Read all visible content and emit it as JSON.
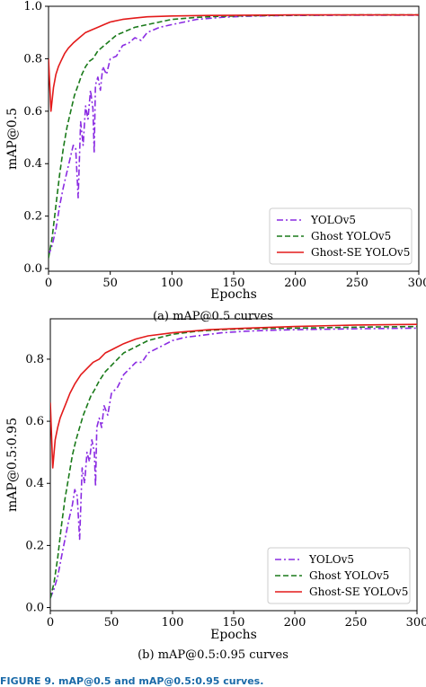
{
  "figure_caption": "FIGURE 9. mAP@0.5 and mAP@0.5:0.95 curves.",
  "chart_data": [
    {
      "type": "line",
      "caption": "(a) mAP@0.5 curves",
      "xlabel": "Epochs",
      "ylabel": "mAP@0.5",
      "xlim": [
        0,
        300
      ],
      "ylim": [
        -0.01,
        1.0
      ],
      "xticks": [
        0,
        50,
        100,
        150,
        200,
        250,
        300
      ],
      "yticks": [
        0.0,
        0.2,
        0.4,
        0.6,
        0.8,
        1.0
      ],
      "ytick_labels": [
        "0.0",
        "0.2",
        "0.4",
        "0.6",
        "0.8",
        "1.0"
      ],
      "legend_position": "bottom-right",
      "series": [
        {
          "name": "YOLOv5",
          "color": "#8a2be2",
          "style": "dashdot",
          "points": [
            [
              0,
              0.05
            ],
            [
              3,
              0.09
            ],
            [
              6,
              0.15
            ],
            [
              9,
              0.24
            ],
            [
              12,
              0.31
            ],
            [
              15,
              0.37
            ],
            [
              18,
              0.43
            ],
            [
              20,
              0.47
            ],
            [
              22,
              0.46
            ],
            [
              24,
              0.27
            ],
            [
              26,
              0.56
            ],
            [
              28,
              0.47
            ],
            [
              30,
              0.62
            ],
            [
              32,
              0.57
            ],
            [
              34,
              0.68
            ],
            [
              36,
              0.61
            ],
            [
              37,
              0.44
            ],
            [
              38,
              0.7
            ],
            [
              40,
              0.73
            ],
            [
              42,
              0.68
            ],
            [
              44,
              0.77
            ],
            [
              47,
              0.74
            ],
            [
              50,
              0.8
            ],
            [
              55,
              0.81
            ],
            [
              60,
              0.85
            ],
            [
              65,
              0.86
            ],
            [
              70,
              0.88
            ],
            [
              75,
              0.87
            ],
            [
              80,
              0.9
            ],
            [
              90,
              0.92
            ],
            [
              100,
              0.93
            ],
            [
              110,
              0.94
            ],
            [
              120,
              0.95
            ],
            [
              140,
              0.958
            ],
            [
              160,
              0.962
            ],
            [
              180,
              0.964
            ],
            [
              200,
              0.965
            ],
            [
              250,
              0.966
            ],
            [
              300,
              0.966
            ]
          ]
        },
        {
          "name": "Ghost YOLOv5",
          "color": "#1a7a1a",
          "style": "dashed",
          "points": [
            [
              0,
              0.04
            ],
            [
              3,
              0.12
            ],
            [
              6,
              0.24
            ],
            [
              9,
              0.36
            ],
            [
              12,
              0.46
            ],
            [
              15,
              0.54
            ],
            [
              18,
              0.6
            ],
            [
              21,
              0.66
            ],
            [
              24,
              0.7
            ],
            [
              27,
              0.74
            ],
            [
              30,
              0.77
            ],
            [
              33,
              0.79
            ],
            [
              36,
              0.8
            ],
            [
              40,
              0.83
            ],
            [
              45,
              0.85
            ],
            [
              50,
              0.87
            ],
            [
              55,
              0.89
            ],
            [
              60,
              0.9
            ],
            [
              70,
              0.92
            ],
            [
              80,
              0.93
            ],
            [
              90,
              0.94
            ],
            [
              100,
              0.95
            ],
            [
              120,
              0.958
            ],
            [
              140,
              0.962
            ],
            [
              160,
              0.964
            ],
            [
              200,
              0.966
            ],
            [
              250,
              0.967
            ],
            [
              300,
              0.967
            ]
          ]
        },
        {
          "name": "Ghost-SE YOLOv5",
          "color": "#e31a1a",
          "style": "solid",
          "points": [
            [
              0,
              0.8
            ],
            [
              2,
              0.6
            ],
            [
              4,
              0.69
            ],
            [
              6,
              0.74
            ],
            [
              8,
              0.77
            ],
            [
              10,
              0.79
            ],
            [
              13,
              0.82
            ],
            [
              16,
              0.84
            ],
            [
              20,
              0.86
            ],
            [
              25,
              0.88
            ],
            [
              30,
              0.9
            ],
            [
              35,
              0.91
            ],
            [
              40,
              0.92
            ],
            [
              45,
              0.93
            ],
            [
              50,
              0.94
            ],
            [
              60,
              0.95
            ],
            [
              70,
              0.955
            ],
            [
              80,
              0.96
            ],
            [
              100,
              0.963
            ],
            [
              130,
              0.965
            ],
            [
              160,
              0.966
            ],
            [
              200,
              0.967
            ],
            [
              250,
              0.967
            ],
            [
              300,
              0.967
            ]
          ]
        }
      ]
    },
    {
      "type": "line",
      "caption": "(b) mAP@0.5:0.95 curves",
      "xlabel": "Epochs",
      "ylabel": "mAP@0.5:0.95",
      "xlim": [
        0,
        300
      ],
      "ylim": [
        -0.01,
        0.93
      ],
      "xticks": [
        0,
        50,
        100,
        150,
        200,
        250,
        300
      ],
      "yticks": [
        0.0,
        0.2,
        0.4,
        0.6,
        0.8
      ],
      "ytick_labels": [
        "0.0",
        "0.2",
        "0.4",
        "0.6",
        "0.8"
      ],
      "legend_position": "bottom-right",
      "series": [
        {
          "name": "YOLOv5",
          "color": "#8a2be2",
          "style": "dashdot",
          "points": [
            [
              0,
              0.03
            ],
            [
              3,
              0.06
            ],
            [
              6,
              0.1
            ],
            [
              9,
              0.16
            ],
            [
              12,
              0.22
            ],
            [
              15,
              0.28
            ],
            [
              18,
              0.33
            ],
            [
              20,
              0.38
            ],
            [
              22,
              0.36
            ],
            [
              24,
              0.22
            ],
            [
              26,
              0.45
            ],
            [
              28,
              0.4
            ],
            [
              30,
              0.5
            ],
            [
              32,
              0.47
            ],
            [
              34,
              0.54
            ],
            [
              36,
              0.5
            ],
            [
              37,
              0.39
            ],
            [
              38,
              0.58
            ],
            [
              40,
              0.61
            ],
            [
              42,
              0.58
            ],
            [
              44,
              0.65
            ],
            [
              47,
              0.62
            ],
            [
              50,
              0.69
            ],
            [
              55,
              0.71
            ],
            [
              60,
              0.75
            ],
            [
              65,
              0.77
            ],
            [
              70,
              0.79
            ],
            [
              75,
              0.79
            ],
            [
              80,
              0.82
            ],
            [
              90,
              0.84
            ],
            [
              100,
              0.86
            ],
            [
              110,
              0.87
            ],
            [
              120,
              0.875
            ],
            [
              140,
              0.885
            ],
            [
              160,
              0.89
            ],
            [
              180,
              0.893
            ],
            [
              200,
              0.895
            ],
            [
              250,
              0.898
            ],
            [
              300,
              0.9
            ]
          ]
        },
        {
          "name": "Ghost YOLOv5",
          "color": "#1a7a1a",
          "style": "dashed",
          "points": [
            [
              0,
              0.03
            ],
            [
              3,
              0.08
            ],
            [
              6,
              0.16
            ],
            [
              9,
              0.26
            ],
            [
              12,
              0.35
            ],
            [
              15,
              0.42
            ],
            [
              18,
              0.49
            ],
            [
              21,
              0.54
            ],
            [
              24,
              0.58
            ],
            [
              27,
              0.62
            ],
            [
              30,
              0.65
            ],
            [
              33,
              0.68
            ],
            [
              36,
              0.7
            ],
            [
              40,
              0.73
            ],
            [
              45,
              0.76
            ],
            [
              50,
              0.78
            ],
            [
              55,
              0.8
            ],
            [
              60,
              0.82
            ],
            [
              70,
              0.84
            ],
            [
              80,
              0.86
            ],
            [
              90,
              0.87
            ],
            [
              100,
              0.88
            ],
            [
              120,
              0.89
            ],
            [
              140,
              0.895
            ],
            [
              160,
              0.898
            ],
            [
              200,
              0.9
            ],
            [
              250,
              0.903
            ],
            [
              300,
              0.905
            ]
          ]
        },
        {
          "name": "Ghost-SE YOLOv5",
          "color": "#e31a1a",
          "style": "solid",
          "points": [
            [
              0,
              0.66
            ],
            [
              2,
              0.45
            ],
            [
              4,
              0.54
            ],
            [
              6,
              0.58
            ],
            [
              8,
              0.61
            ],
            [
              10,
              0.63
            ],
            [
              13,
              0.66
            ],
            [
              16,
              0.69
            ],
            [
              20,
              0.72
            ],
            [
              25,
              0.75
            ],
            [
              30,
              0.77
            ],
            [
              35,
              0.79
            ],
            [
              40,
              0.8
            ],
            [
              45,
              0.82
            ],
            [
              50,
              0.83
            ],
            [
              60,
              0.85
            ],
            [
              70,
              0.865
            ],
            [
              80,
              0.875
            ],
            [
              100,
              0.885
            ],
            [
              130,
              0.895
            ],
            [
              160,
              0.9
            ],
            [
              200,
              0.905
            ],
            [
              250,
              0.91
            ],
            [
              300,
              0.912
            ]
          ]
        }
      ]
    }
  ]
}
